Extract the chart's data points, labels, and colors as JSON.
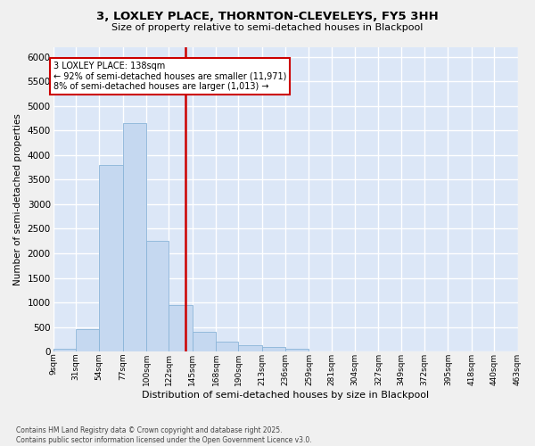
{
  "title_line1": "3, LOXLEY PLACE, THORNTON-CLEVELEYS, FY5 3HH",
  "title_line2": "Size of property relative to semi-detached houses in Blackpool",
  "xlabel": "Distribution of semi-detached houses by size in Blackpool",
  "ylabel": "Number of semi-detached properties",
  "bar_color": "#c5d8f0",
  "bar_edge_color": "#8ab4d8",
  "plot_bg_color": "#dce7f7",
  "grid_color": "#ffffff",
  "vline_color": "#cc0000",
  "annotation_text": "3 LOXLEY PLACE: 138sqm\n← 92% of semi-detached houses are smaller (11,971)\n8% of semi-detached houses are larger (1,013) →",
  "bins": [
    9,
    31,
    54,
    77,
    100,
    122,
    145,
    168,
    190,
    213,
    236,
    259,
    281,
    304,
    327,
    349,
    372,
    395,
    418,
    440,
    463
  ],
  "bin_labels": [
    "9sqm",
    "31sqm",
    "54sqm",
    "77sqm",
    "100sqm",
    "122sqm",
    "145sqm",
    "168sqm",
    "190sqm",
    "213sqm",
    "236sqm",
    "259sqm",
    "281sqm",
    "304sqm",
    "327sqm",
    "349sqm",
    "372sqm",
    "395sqm",
    "418sqm",
    "440sqm",
    "463sqm"
  ],
  "bar_heights": [
    50,
    450,
    3800,
    4650,
    2250,
    950,
    400,
    200,
    130,
    100,
    60,
    0,
    0,
    0,
    0,
    0,
    0,
    0,
    0,
    0,
    0
  ],
  "vline_x": 138,
  "ylim": [
    0,
    6200
  ],
  "yticks": [
    0,
    500,
    1000,
    1500,
    2000,
    2500,
    3000,
    3500,
    4000,
    4500,
    5000,
    5500,
    6000
  ],
  "fig_bg_color": "#f0f0f0",
  "footnote": "Contains HM Land Registry data © Crown copyright and database right 2025.\nContains public sector information licensed under the Open Government Licence v3.0."
}
